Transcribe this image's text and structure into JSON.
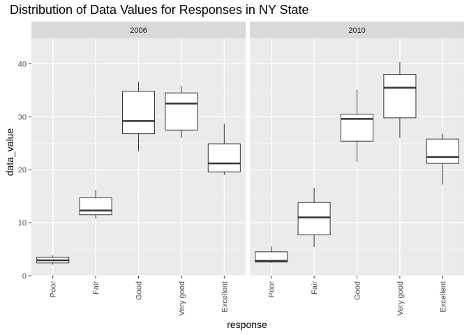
{
  "chart_data": {
    "type": "boxplot",
    "title": "Distribution of Data Values for Responses in NY State",
    "xlabel": "response",
    "ylabel": "data_value",
    "categories": [
      "Poor",
      "Fair",
      "Good",
      "Very good",
      "Excellent"
    ],
    "ylim": [
      0,
      44.8
    ],
    "yticks": [
      0,
      10,
      20,
      30,
      40
    ],
    "grid": true,
    "facets": [
      {
        "label": "2006",
        "boxes": [
          {
            "category": "Poor",
            "min": 2.1,
            "q1": 2.4,
            "median": 2.9,
            "q3": 3.5,
            "max": 3.8
          },
          {
            "category": "Fair",
            "min": 10.8,
            "q1": 11.5,
            "median": 12.3,
            "q3": 14.7,
            "max": 16.2
          },
          {
            "category": "Good",
            "min": 23.5,
            "q1": 26.8,
            "median": 29.2,
            "q3": 34.8,
            "max": 36.6
          },
          {
            "category": "Very good",
            "min": 26.0,
            "q1": 27.5,
            "median": 32.5,
            "q3": 34.5,
            "max": 35.8
          },
          {
            "category": "Excellent",
            "min": 19.0,
            "q1": 19.6,
            "median": 21.2,
            "q3": 24.9,
            "max": 28.7
          }
        ]
      },
      {
        "label": "2010",
        "boxes": [
          {
            "category": "Poor",
            "min": 2.4,
            "q1": 2.6,
            "median": 2.8,
            "q3": 4.5,
            "max": 5.5
          },
          {
            "category": "Fair",
            "min": 5.4,
            "q1": 7.7,
            "median": 11.0,
            "q3": 13.8,
            "max": 16.6
          },
          {
            "category": "Good",
            "min": 21.5,
            "q1": 25.4,
            "median": 29.6,
            "q3": 30.5,
            "max": 35.1
          },
          {
            "category": "Very good",
            "min": 26.0,
            "q1": 29.8,
            "median": 35.5,
            "q3": 38.0,
            "max": 40.3
          },
          {
            "category": "Excellent",
            "min": 17.2,
            "q1": 21.2,
            "median": 22.4,
            "q3": 25.8,
            "max": 26.8
          }
        ]
      }
    ]
  }
}
